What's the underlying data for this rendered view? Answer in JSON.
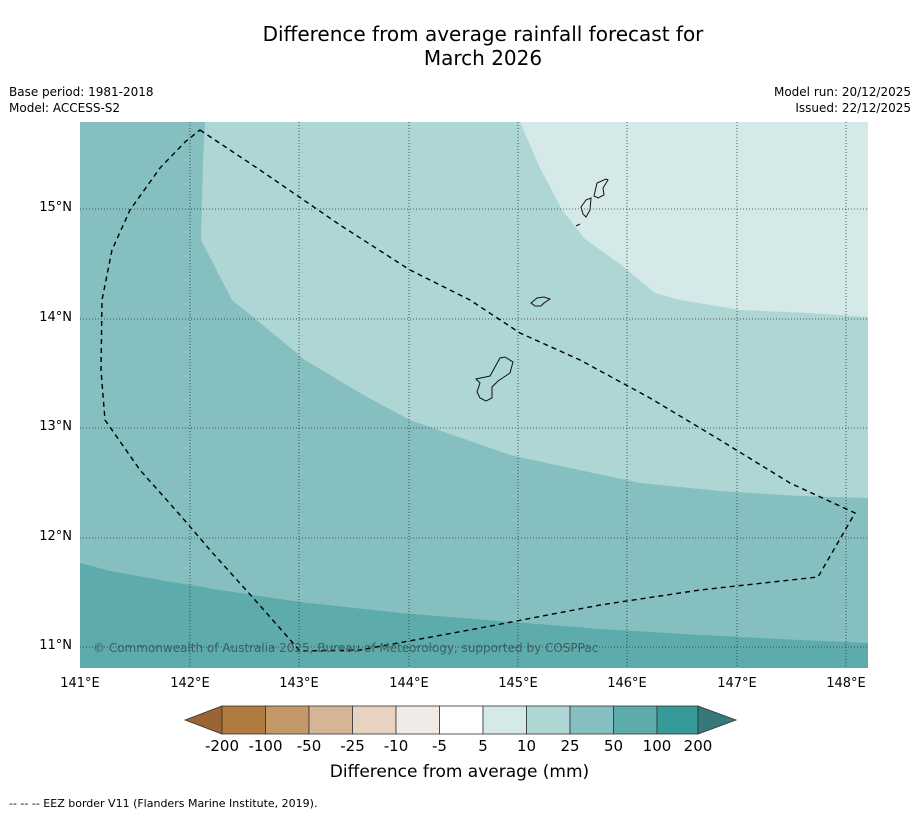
{
  "title_line1": "Difference from average rainfall forecast for",
  "title_line2": "March 2026",
  "base_period": "Base period: 1981-2018",
  "model": "Model: ACCESS-S2",
  "model_run": "Model run: 20/12/2025",
  "issued": "Issued: 22/12/2025",
  "copyright": "© Commonwealth of Australia 2025, Bureau of Meteorology, supported by COSPPac",
  "latitude_labels": [
    "15°N",
    "14°N",
    "13°N",
    "12°N",
    "11°N"
  ],
  "longitude_labels": [
    "141°E",
    "142°E",
    "143°E",
    "144°E",
    "145°E",
    "146°E",
    "147°E",
    "148°E"
  ],
  "colorbar": {
    "title": "Difference from average (mm)",
    "tick_labels": [
      "-200",
      "-100",
      "-50",
      "-25",
      "-10",
      "-5",
      "5",
      "10",
      "25",
      "50",
      "100",
      "200"
    ],
    "colors": [
      "#9c6334",
      "#b07a40",
      "#c29869",
      "#d6b596",
      "#e8d2c0",
      "#f1ebe7",
      "#ffffff",
      "#d5e9e8",
      "#aed6d5",
      "#86bfbf",
      "#5dabab",
      "#369a99",
      "#357978"
    ]
  },
  "map_colors": {
    "band_5_10": "#d5e9e8",
    "band_10_25": "#aed6d5",
    "band_25_50": "#86bfbf",
    "band_50_100": "#5dabab"
  },
  "footer": "--  --  -- EEZ border V11 (Flanders Marine Institute, 2019)."
}
